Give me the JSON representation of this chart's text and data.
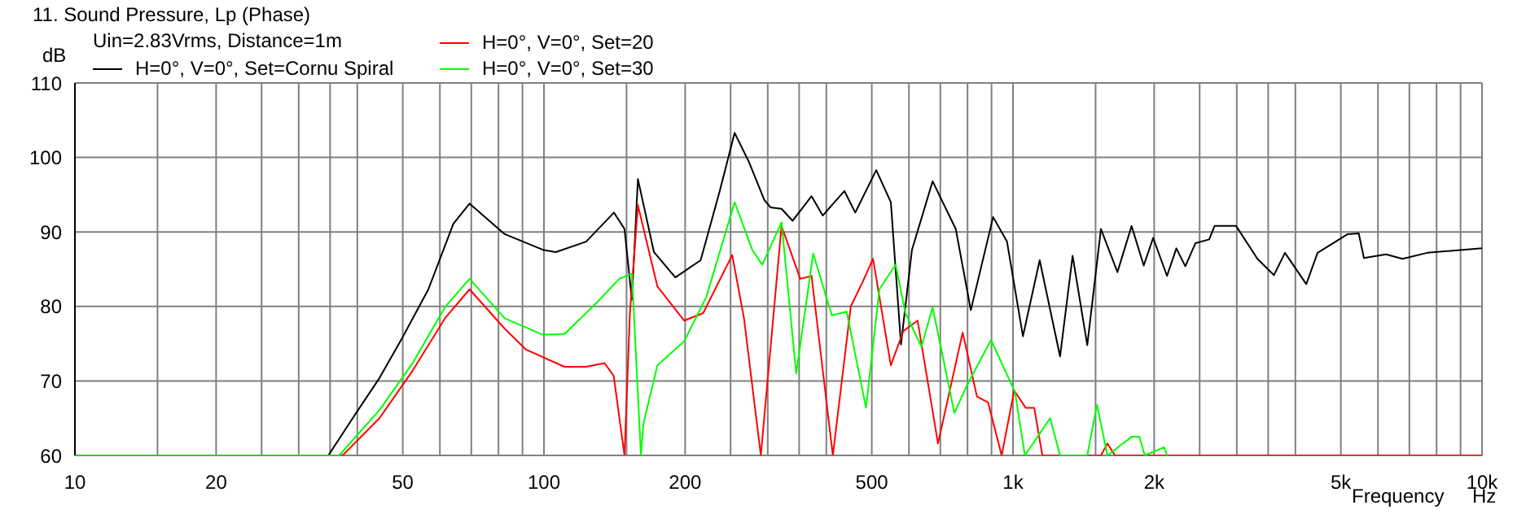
{
  "chart_data": {
    "type": "line",
    "title": "11. Sound Pressure, Lp (Phase)",
    "subtitle": "Uin=2.83Vrms, Distance=1m",
    "xlabel": "Frequency",
    "ylabel": "dB",
    "annotations": [
      "Hz"
    ],
    "log": "x",
    "grid": true,
    "legend": "top",
    "marker": "none",
    "line_style": "solid",
    "xlim": [
      10,
      10000
    ],
    "ylim": [
      60,
      110
    ],
    "xticks": [
      10,
      {
        "value": 15,
        "label": null
      },
      20,
      {
        "value": 25,
        "label": null
      },
      {
        "value": 30,
        "label": null
      },
      {
        "value": 35,
        "label": null
      },
      {
        "value": 40,
        "label": null
      },
      50,
      {
        "value": 60,
        "label": null
      },
      {
        "value": 70,
        "label": null
      },
      {
        "value": 80,
        "label": null
      },
      {
        "value": 90,
        "label": null
      },
      100,
      {
        "value": 150,
        "label": null
      },
      200,
      {
        "value": 250,
        "label": null
      },
      {
        "value": 300,
        "label": null
      },
      {
        "value": 350,
        "label": null
      },
      {
        "value": 400,
        "label": null
      },
      500,
      {
        "value": 600,
        "label": null
      },
      {
        "value": 700,
        "label": null
      },
      {
        "value": 800,
        "label": null
      },
      {
        "value": 900,
        "label": null
      },
      {
        "value": 1000,
        "label": "1k"
      },
      {
        "value": 1500,
        "label": null
      },
      {
        "value": 2000,
        "label": "2k"
      },
      {
        "value": 2500,
        "label": null
      },
      {
        "value": 3000,
        "label": null
      },
      {
        "value": 3500,
        "label": null
      },
      {
        "value": 4000,
        "label": null
      },
      {
        "value": 5000,
        "label": "5k"
      },
      {
        "value": 6000,
        "label": null
      },
      {
        "value": 7000,
        "label": null
      },
      {
        "value": 8000,
        "label": null
      },
      {
        "value": 9000,
        "label": null
      },
      {
        "value": 10000,
        "label": "10k"
      }
    ],
    "yticks": [
      60,
      70,
      80,
      90,
      100,
      110
    ],
    "series": [
      {
        "name": "H=0°, V=0°, Set=Cornu Spiral",
        "color": "#000000",
        "x": [
          10,
          34.7,
          39.1,
          44.5,
          49.7,
          56.7,
          64.1,
          69.4,
          82.5,
          99.5,
          106,
          123,
          141,
          148.5,
          154,
          158.6,
          171.6,
          190.6,
          215.8,
          236.8,
          255,
          274,
          295,
          304,
          321,
          339,
          372,
          393,
          437,
          461,
          511,
          549,
          577,
          609,
          674,
          755,
          813,
          907,
          971,
          1050,
          1140,
          1260,
          1340,
          1440,
          1540,
          1670,
          1790,
          1900,
          1990,
          2130,
          2230,
          2330,
          2450,
          2620,
          2690,
          2990,
          3320,
          3600,
          3800,
          4220,
          4460,
          4960,
          5170,
          5460,
          5600,
          6240,
          6770,
          7640,
          10000
        ],
        "values": [
          60,
          60,
          65.0,
          70.3,
          75.6,
          82.3,
          91.1,
          93.8,
          89.7,
          87.6,
          87.3,
          88.7,
          92.6,
          90.4,
          80.9,
          97.1,
          87.3,
          83.9,
          86.2,
          95.4,
          103.3,
          99.3,
          94.3,
          93.3,
          93.1,
          91.5,
          94.8,
          92.2,
          95.5,
          92.6,
          98.3,
          94.0,
          74.9,
          87.6,
          96.8,
          90.4,
          79.5,
          92.0,
          88.7,
          76.0,
          86.2,
          73.3,
          86.8,
          74.8,
          90.4,
          84.6,
          90.8,
          85.5,
          89.2,
          84.1,
          87.8,
          85.4,
          88.5,
          89.0,
          90.8,
          90.8,
          86.4,
          84.2,
          87.2,
          83.0,
          87.2,
          89.0,
          89.7,
          89.8,
          86.5,
          87.0,
          86.4,
          87.2,
          87.8
        ]
      },
      {
        "name": "H=0°, V=0°, Set=20",
        "color": "#ff0000",
        "x": [
          10,
          37.2,
          44.6,
          52.5,
          61.5,
          69.4,
          82.5,
          91.6,
          110.6,
          123,
          134.6,
          140.8,
          148.5,
          152.5,
          158.6,
          174.5,
          199,
          218.5,
          252,
          267,
          290,
          321,
          352,
          372,
          413,
          451,
          479,
          503,
          549,
          584,
          626,
          692,
          781,
          838,
          885,
          946,
          1006,
          1064,
          1110,
          1155,
          1540,
          1590,
          1650,
          10000
        ],
        "values": [
          60,
          60,
          65.0,
          71.4,
          78.4,
          82.3,
          77.0,
          74.2,
          71.9,
          71.9,
          72.4,
          70.7,
          60,
          79.1,
          93.6,
          82.7,
          78.1,
          79.1,
          86.9,
          78.4,
          60,
          90.8,
          83.7,
          84.1,
          60,
          80.0,
          83.4,
          86.4,
          72.1,
          76.7,
          78.1,
          61.6,
          76.5,
          67.9,
          67.1,
          60,
          68.7,
          66.4,
          66.4,
          60,
          60,
          61.6,
          60,
          60
        ]
      },
      {
        "name": "H=0°, V=0°, Set=30",
        "color": "#00ff00",
        "x": [
          10,
          36.6,
          44.6,
          52.5,
          61.5,
          69.4,
          82.5,
          99.5,
          110.6,
          130,
          144.7,
          154,
          161,
          163,
          174.5,
          199,
          222,
          255,
          278,
          292,
          321,
          345,
          375,
          411,
          442,
          486,
          519,
          562,
          590,
          638,
          674,
          750,
          796,
          898,
          1010,
          1060,
          1200,
          1260,
          1440,
          1510,
          1590,
          1790,
          1860,
          1910,
          2100,
          2130
        ],
        "values": [
          60,
          60,
          66.1,
          72.4,
          79.9,
          83.7,
          78.4,
          76.2,
          76.3,
          80.6,
          83.7,
          84.4,
          60,
          64.3,
          72.1,
          75.3,
          81.3,
          94.0,
          87.6,
          85.6,
          91.3,
          71.0,
          87.1,
          78.8,
          79.3,
          66.4,
          82.3,
          85.6,
          79.1,
          74.6,
          79.9,
          65.7,
          69.3,
          75.5,
          68.5,
          60,
          65.0,
          60,
          60,
          66.8,
          60,
          62.5,
          62.5,
          60,
          61.1,
          60
        ]
      }
    ]
  }
}
